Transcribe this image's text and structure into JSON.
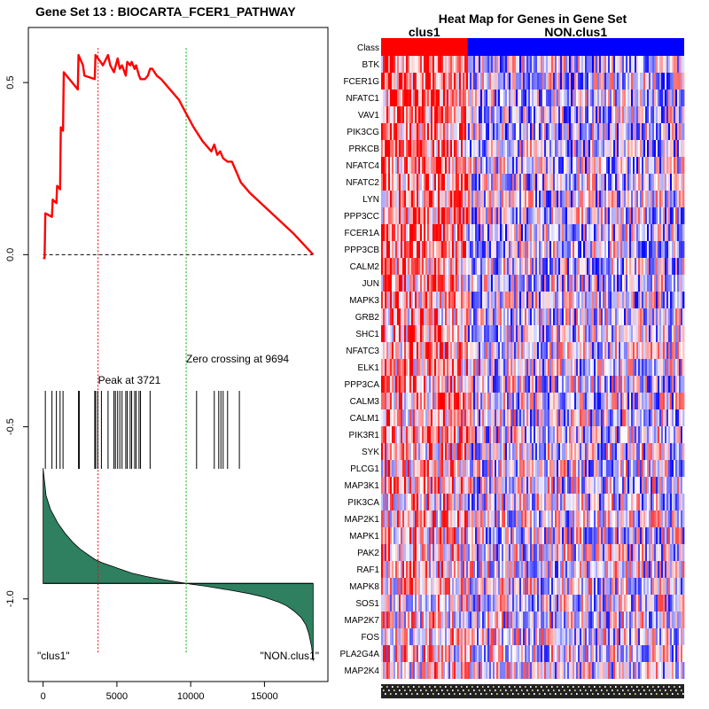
{
  "chart_data": [
    {
      "type": "line",
      "title": "Gene Set  13 : BIOCARTA_FCER1_PATHWAY",
      "xlabel": "",
      "ylabel": "",
      "xlim": [
        -1000,
        19300
      ],
      "ylim": [
        -1.24,
        0.66
      ],
      "x_ticks": [
        0,
        5000,
        10000,
        15000
      ],
      "x_tick_labels": [
        "0",
        "5000",
        "10000",
        "15000"
      ],
      "y_ticks": [
        -1.0,
        -0.5,
        0.0,
        0.5
      ],
      "y_tick_labels": [
        "-1.0",
        "-0.5",
        "0.0",
        "0.5"
      ],
      "enrichment_score_curve": {
        "color": "#ff0000",
        "x": [
          0,
          100,
          150,
          600,
          650,
          900,
          950,
          1150,
          1200,
          1350,
          1400,
          2350,
          2400,
          2700,
          2800,
          3500,
          3550,
          3721,
          3900,
          4050,
          4400,
          4550,
          4800,
          5050,
          5200,
          5350,
          5600,
          5700,
          5900,
          6000,
          6200,
          6300,
          6500,
          6600,
          6900,
          7100,
          7250,
          7400,
          7700,
          8000,
          8400,
          8800,
          9200,
          9694,
          10200,
          10800,
          11400,
          11600,
          11800,
          12000,
          12200,
          12500,
          12800,
          13000,
          13200,
          13400,
          14000,
          15000,
          16000,
          17000,
          18300
        ],
        "y": [
          -0.01,
          -0.01,
          0.12,
          0.11,
          0.16,
          0.15,
          0.2,
          0.19,
          0.37,
          0.36,
          0.53,
          0.48,
          0.58,
          0.55,
          0.52,
          0.51,
          0.58,
          0.57,
          0.56,
          0.55,
          0.58,
          0.55,
          0.53,
          0.57,
          0.54,
          0.55,
          0.52,
          0.56,
          0.55,
          0.56,
          0.54,
          0.55,
          0.52,
          0.51,
          0.51,
          0.52,
          0.54,
          0.54,
          0.52,
          0.51,
          0.49,
          0.47,
          0.45,
          0.41,
          0.37,
          0.33,
          0.3,
          0.32,
          0.29,
          0.3,
          0.28,
          0.27,
          0.27,
          0.25,
          0.23,
          0.21,
          0.18,
          0.14,
          0.1,
          0.06,
          -0.0
        ]
      },
      "zero_line": {
        "y": 0.0,
        "style": "dashed",
        "color": "#000000"
      },
      "peak": {
        "x": 3721,
        "label": "Peak at 3721",
        "color": "#ff0000"
      },
      "zero_crossing": {
        "x": 9694,
        "label": "Zero crossing at 9694",
        "color": "#00aa00"
      },
      "hit_positions": [
        150,
        600,
        900,
        1150,
        1350,
        2400,
        2450,
        3500,
        3560,
        3700,
        3950,
        4400,
        4800,
        4900,
        5050,
        5200,
        5350,
        5600,
        5700,
        5900,
        6000,
        6200,
        6300,
        6500,
        6600,
        7250,
        10400,
        11600,
        11900,
        12050,
        12200,
        12500,
        13300
      ],
      "ranked_metric": {
        "color": "#2e8060",
        "baseline": -0.955,
        "x": [
          0,
          200,
          500,
          1000,
          1500,
          2000,
          2500,
          3000,
          3500,
          4000,
          5000,
          6000,
          7000,
          8000,
          9000,
          10000,
          11000,
          12000,
          13000,
          14000,
          15000,
          16000,
          16500,
          17000,
          17500,
          17800,
          18000,
          18200,
          18300
        ],
        "y": [
          -0.62,
          -0.7,
          -0.74,
          -0.78,
          -0.81,
          -0.835,
          -0.855,
          -0.87,
          -0.885,
          -0.895,
          -0.91,
          -0.925,
          -0.935,
          -0.943,
          -0.95,
          -0.957,
          -0.963,
          -0.97,
          -0.977,
          -0.985,
          -0.995,
          -1.01,
          -1.02,
          -1.035,
          -1.055,
          -1.075,
          -1.1,
          -1.14,
          -1.18
        ]
      },
      "corner_labels": {
        "left": "\"clus1\"",
        "right": "\"NON.clus1\""
      }
    },
    {
      "type": "heatmap",
      "title": "Heat Map for Genes in Gene Set",
      "class_row_label": "Class",
      "classes": [
        {
          "name": "clus1",
          "color": "#ff0000",
          "fraction": 0.285
        },
        {
          "name": "NON.clus1",
          "color": "#0000ff",
          "fraction": 0.715
        }
      ],
      "genes": [
        "BTK",
        "FCER1G",
        "NFATC1",
        "VAV1",
        "PIK3CG",
        "PRKCB",
        "NFATC4",
        "NFATC2",
        "LYN",
        "PPP3CC",
        "FCER1A",
        "PPP3CB",
        "CALM2",
        "JUN",
        "MAPK3",
        "GRB2",
        "SHC1",
        "NFATC3",
        "ELK1",
        "PPP3CA",
        "CALM3",
        "CALM1",
        "PIK3R1",
        "SYK",
        "PLCG1",
        "MAP3K1",
        "PIK3CA",
        "MAP2K1",
        "MAPK1",
        "PAK2",
        "RAF1",
        "MAPK8",
        "SOS1",
        "MAP2K7",
        "FOS",
        "PLA2G4A",
        "MAP2K4"
      ],
      "colors": {
        "high": "#ff0000",
        "mid": "#ffffff",
        "low": "#0000ff"
      }
    }
  ]
}
